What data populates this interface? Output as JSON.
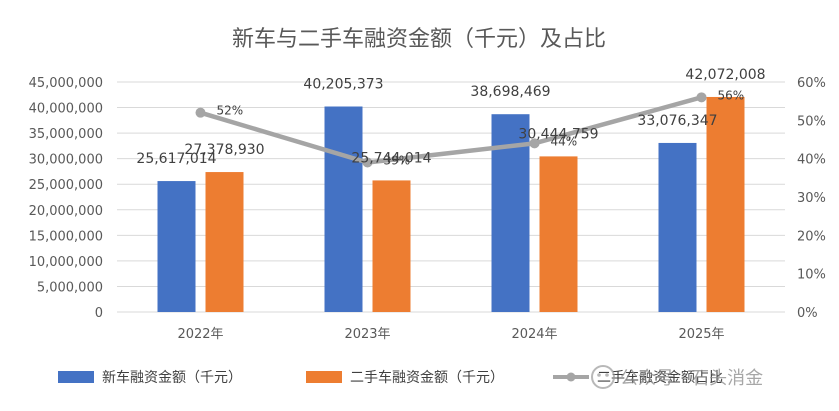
{
  "chart_data": {
    "type": "bar",
    "title": "新车与二手车融资金额（千元）及占比",
    "categories": [
      "2022年",
      "2023年",
      "2024年",
      "2025年"
    ],
    "series": [
      {
        "name": "新车融资金额（千元）",
        "kind": "bar",
        "axis": "left",
        "color": "#4472C4",
        "values": [
          25617014,
          40205373,
          38698469,
          33076347
        ],
        "labels": [
          "25,617,014",
          "40,205,373",
          "38,698,469",
          "33,076,347"
        ]
      },
      {
        "name": "二手车融资金额（千元）",
        "kind": "bar",
        "axis": "left",
        "color": "#ED7D31",
        "values": [
          27378930,
          25744014,
          30444759,
          42072008
        ],
        "labels": [
          "27,378,930",
          "25,744,014",
          "30,444,759",
          "42,072,008"
        ]
      },
      {
        "name": "二手车融资金额占比",
        "kind": "line",
        "axis": "right",
        "color": "#A5A5A5",
        "values": [
          52,
          39,
          44,
          56
        ],
        "labels": [
          "52%",
          "39%",
          "44%",
          "56%"
        ]
      }
    ],
    "y_left": {
      "min": 0,
      "max": 45000000,
      "ticks": [
        "0",
        "5,000,000",
        "10,000,000",
        "15,000,000",
        "20,000,000",
        "25,000,000",
        "30,000,000",
        "35,000,000",
        "40,000,000",
        "45,000,000"
      ]
    },
    "y_right": {
      "min": 0,
      "max": 60,
      "ticks": [
        "0%",
        "10%",
        "20%",
        "30%",
        "40%",
        "50%",
        "60%"
      ]
    },
    "grid": true,
    "legend": "bottom"
  },
  "watermark": {
    "text": "公众号 · 石头消金"
  }
}
